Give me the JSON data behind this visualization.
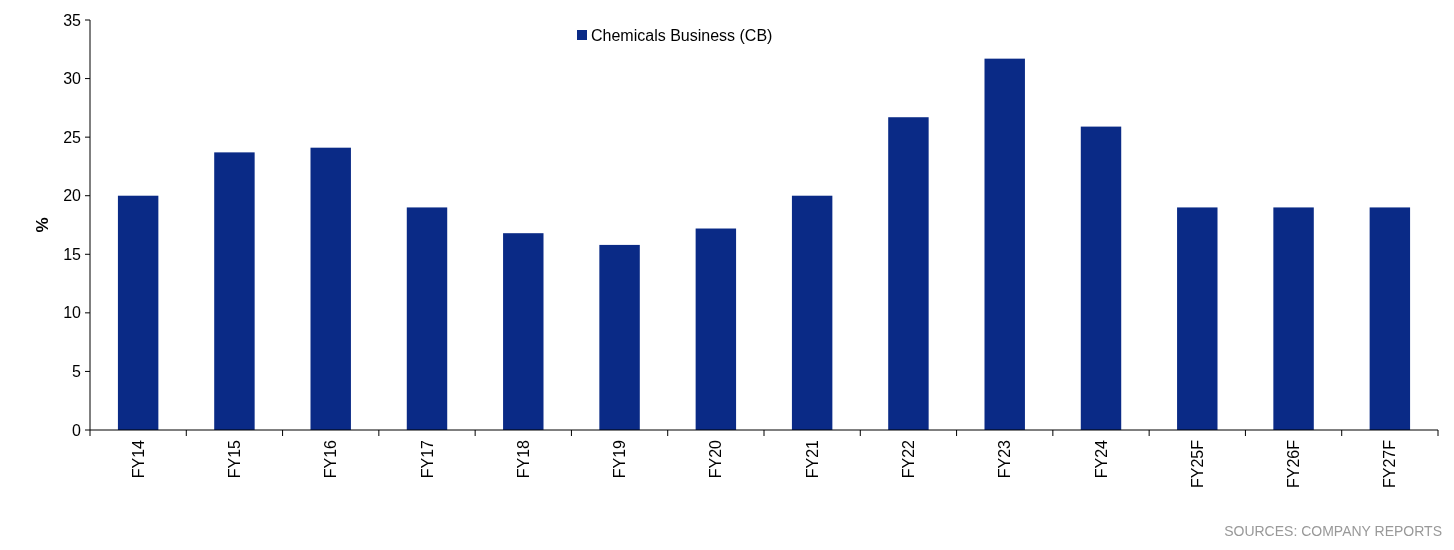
{
  "chart_data": {
    "type": "bar",
    "ylabel": "%",
    "categories": [
      "FY14",
      "FY15",
      "FY16",
      "FY17",
      "FY18",
      "FY19",
      "FY20",
      "FY21",
      "FY22",
      "FY23",
      "FY24",
      "FY25F",
      "FY26F",
      "FY27F"
    ],
    "series": [
      {
        "name": "Chemicals Business (CB)",
        "color": "#0a2a86",
        "values": [
          20,
          23.7,
          24.1,
          19,
          16.8,
          15.8,
          17.2,
          20,
          26.7,
          31.7,
          25.9,
          19,
          19,
          19
        ]
      }
    ],
    "ylim": [
      0,
      35
    ],
    "yticks": [
      0,
      5,
      10,
      15,
      20,
      25,
      30,
      35
    ],
    "grid": false,
    "legend": "top",
    "annotations": [
      "SOURCES: COMPANY REPORTS"
    ]
  }
}
